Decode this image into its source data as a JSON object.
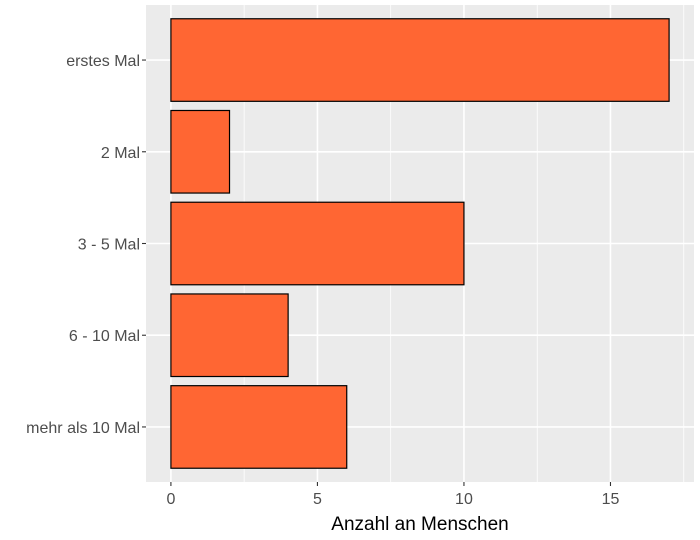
{
  "chart_data": {
    "type": "bar",
    "orientation": "horizontal",
    "categories": [
      "erstes Mal",
      "2 Mal",
      "3 - 5 Mal",
      "6 - 10 Mal",
      "mehr als 10 Mal"
    ],
    "values": [
      17,
      2,
      10,
      4,
      6
    ],
    "xlabel": "Anzahl an Menschen",
    "ylabel": "",
    "xlim": [
      -0.85,
      17.85
    ],
    "xticks": [
      0,
      5,
      10,
      15
    ],
    "xtick_labels": [
      "0",
      "5",
      "10",
      "15"
    ],
    "grid": true,
    "colors": {
      "bar_fill": "#FF6633",
      "bar_stroke": "#000000",
      "panel_bg": "#EBEBEB",
      "grid": "#FFFFFF"
    }
  }
}
